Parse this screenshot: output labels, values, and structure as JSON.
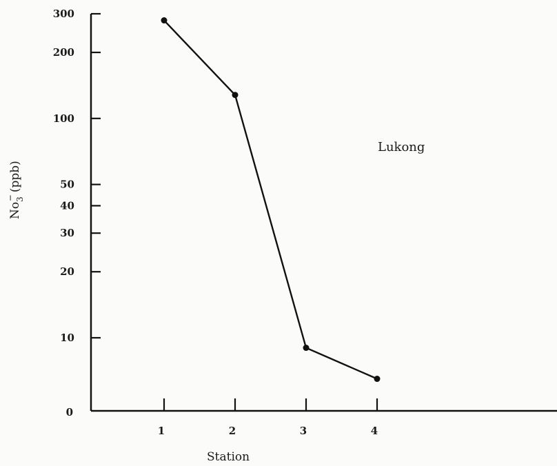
{
  "chart_data": {
    "type": "line",
    "title": "",
    "xlabel": "Station",
    "ylabel": "No3-(ppb)",
    "ylabel_main": "No",
    "ylabel_sub": "3",
    "ylabel_sup": "−",
    "ylabel_unit": "(ppb)",
    "y_scale": "log",
    "grid": false,
    "legend": "none",
    "x_ticks": [
      "1",
      "2",
      "3",
      "4"
    ],
    "y_ticks": [
      {
        "value": 300,
        "label": "300"
      },
      {
        "value": 200,
        "label": "200"
      },
      {
        "value": 100,
        "label": "100"
      },
      {
        "value": 50,
        "label": "50"
      },
      {
        "value": 40,
        "label": "40"
      },
      {
        "value": 30,
        "label": "30"
      },
      {
        "value": 20,
        "label": "20"
      },
      {
        "value": 10,
        "label": "10"
      },
      {
        "value": 0,
        "label": "0"
      }
    ],
    "series": [
      {
        "x": [
          1,
          2,
          3,
          4
        ],
        "y": [
          280,
          128,
          9,
          6.5
        ]
      }
    ],
    "annotations": [
      {
        "text": "Lukong"
      }
    ]
  }
}
